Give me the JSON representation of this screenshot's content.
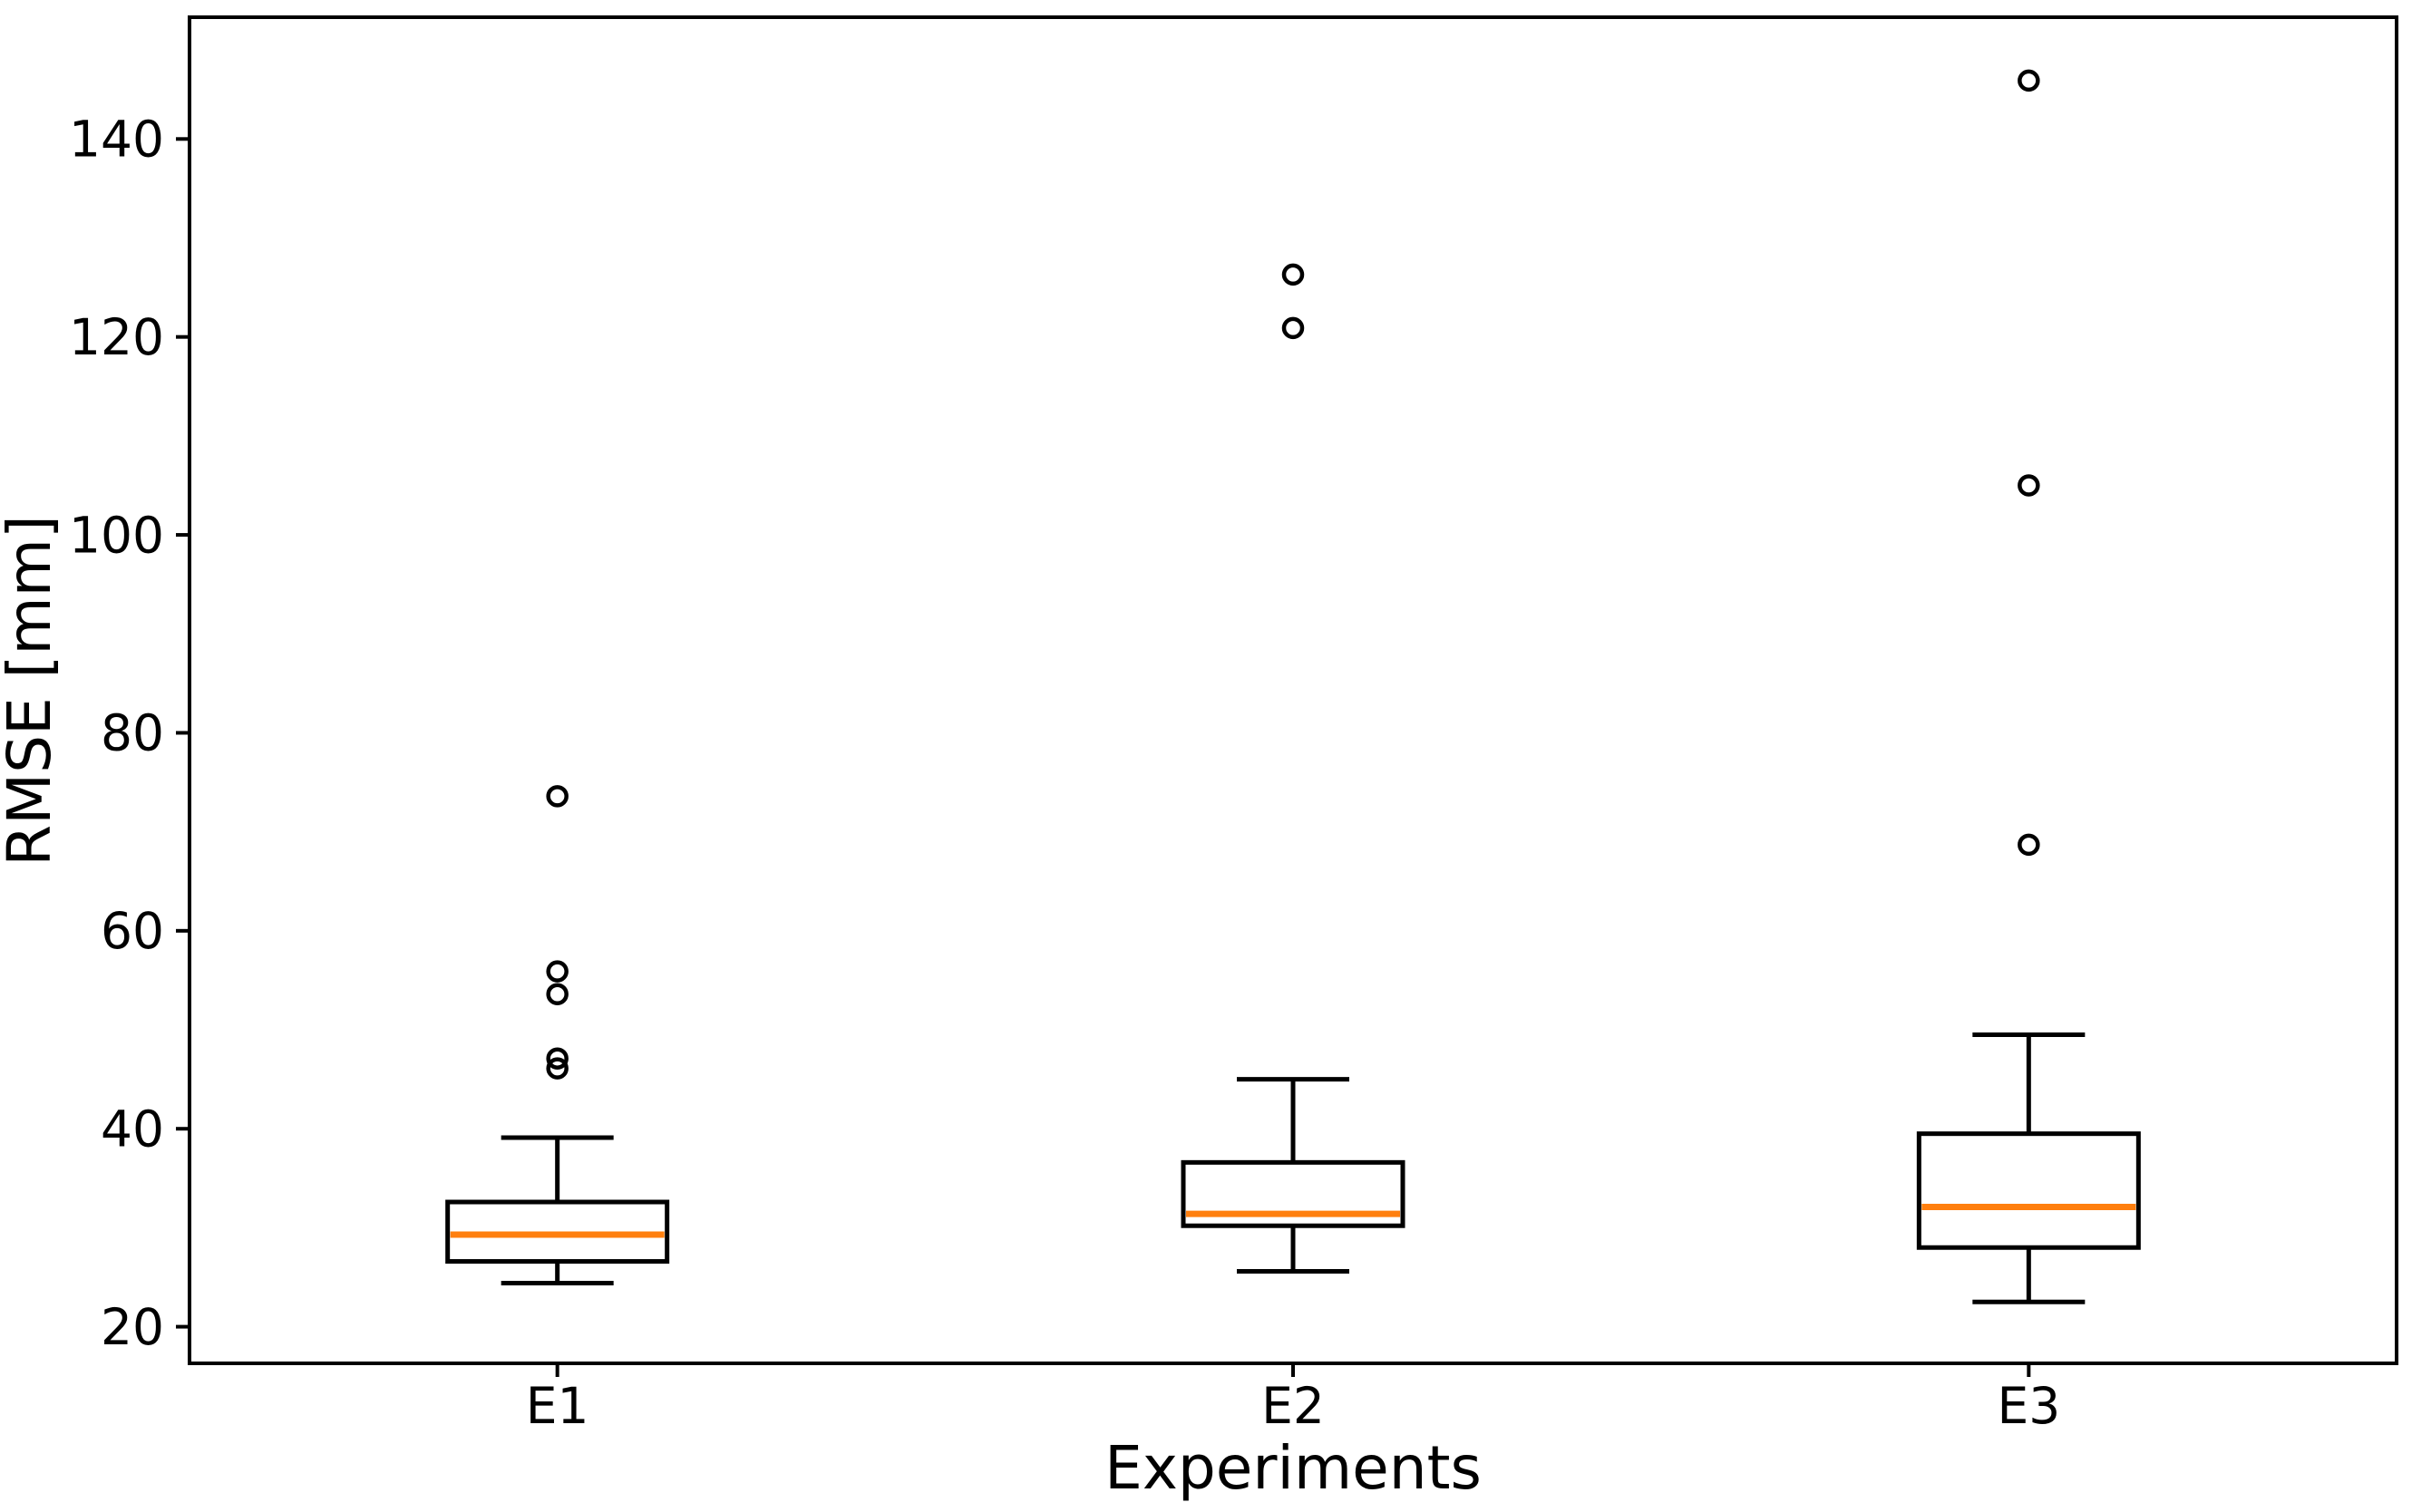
{
  "figure": {
    "background": "#ffffff"
  },
  "chart_data": {
    "type": "boxplot",
    "title": "",
    "xlabel": "Experiments",
    "ylabel": "RMSE [mm]",
    "categories": [
      "E1",
      "E2",
      "E3"
    ],
    "yticks": [
      20,
      40,
      60,
      80,
      100,
      120,
      140
    ],
    "ylim": [
      16.3,
      152.3
    ],
    "grid": false,
    "legend": "none",
    "colors": {
      "line": "#000000",
      "median": "#ff7f0e",
      "background": "#ffffff"
    },
    "series": [
      {
        "name": "E1",
        "whisker_low": 24.4,
        "q1": 26.6,
        "median": 29.3,
        "q3": 32.6,
        "whisker_high": 39.1,
        "outliers": [
          46.1,
          47.1,
          53.6,
          55.9,
          73.6
        ]
      },
      {
        "name": "E2",
        "whisker_low": 25.6,
        "q1": 30.2,
        "median": 31.4,
        "q3": 36.6,
        "whisker_high": 45.0,
        "outliers": [
          120.9,
          126.3
        ]
      },
      {
        "name": "E3",
        "whisker_low": 22.5,
        "q1": 28.0,
        "median": 32.1,
        "q3": 39.5,
        "whisker_high": 49.5,
        "outliers": [
          68.7,
          105.0,
          145.9
        ]
      }
    ]
  }
}
